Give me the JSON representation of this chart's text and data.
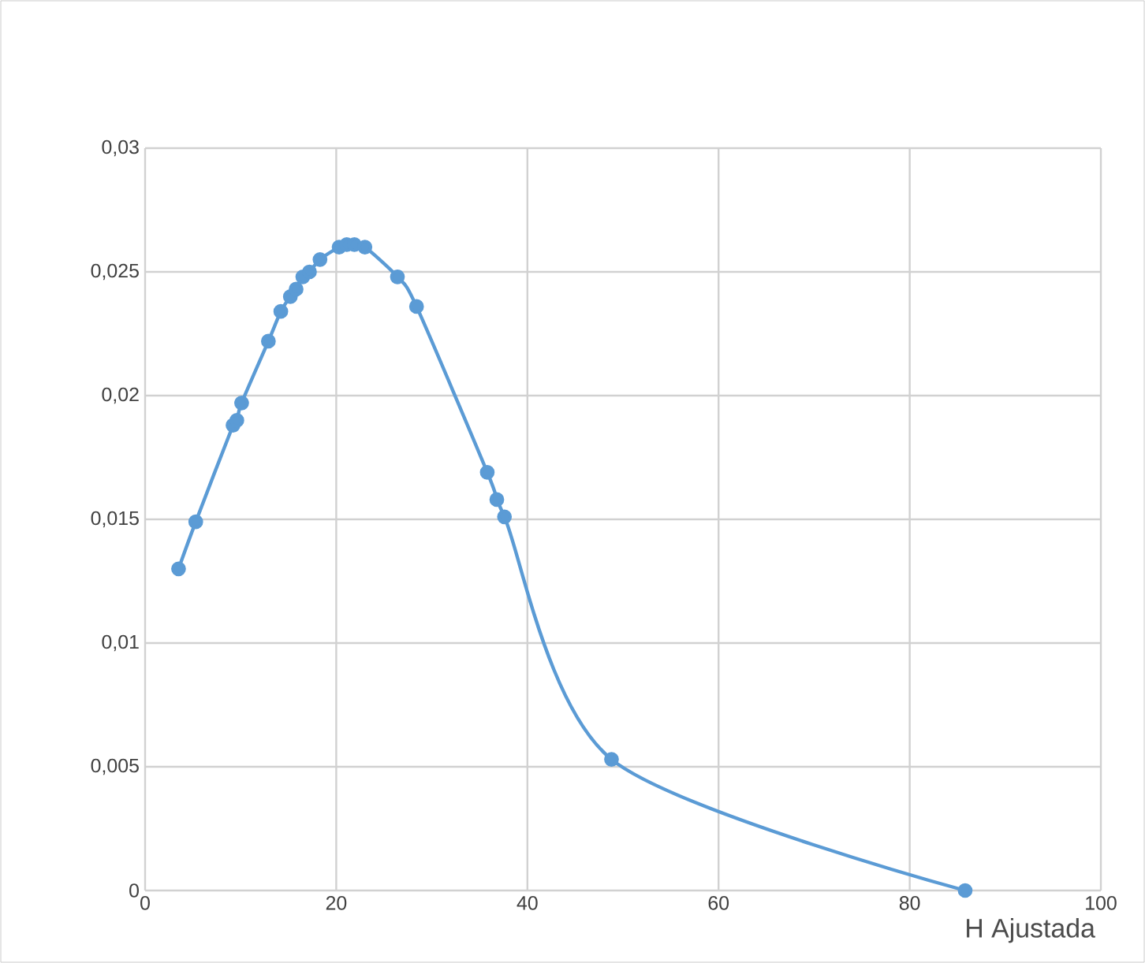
{
  "chart_data": {
    "type": "line",
    "xlabel": "H Ajustada",
    "x": [
      3.5,
      5.3,
      9.2,
      9.6,
      10.1,
      12.9,
      14.2,
      15.2,
      15.8,
      16.5,
      17.2,
      18.3,
      20.3,
      21.1,
      21.9,
      23.0,
      26.4,
      28.4,
      35.8,
      36.8,
      37.6,
      48.8,
      85.8
    ],
    "series": [
      {
        "color": "#5b9bd5",
        "values": [
          0.013,
          0.0149,
          0.0188,
          0.019,
          0.0197,
          0.0222,
          0.0234,
          0.024,
          0.0243,
          0.0248,
          0.025,
          0.0255,
          0.026,
          0.0261,
          0.0261,
          0.026,
          0.0248,
          0.0236,
          0.0169,
          0.0158,
          0.0151,
          0.0053,
          0.0
        ]
      }
    ],
    "xlim": [
      0,
      100
    ],
    "ylim": [
      0,
      0.03
    ],
    "xticks": [
      0,
      20,
      40,
      60,
      80,
      100
    ],
    "yticks": [
      0,
      {
        "value": 0.005,
        "label": "0,005"
      },
      {
        "value": 0.01,
        "label": "0,01"
      },
      {
        "value": 0.015,
        "label": "0,015"
      },
      {
        "value": 0.02,
        "label": "0,02"
      },
      {
        "value": 0.025,
        "label": "0,025"
      },
      {
        "value": 0.03,
        "label": "0,03"
      }
    ],
    "grid": true,
    "marker": "circle",
    "line_style": "solid"
  }
}
